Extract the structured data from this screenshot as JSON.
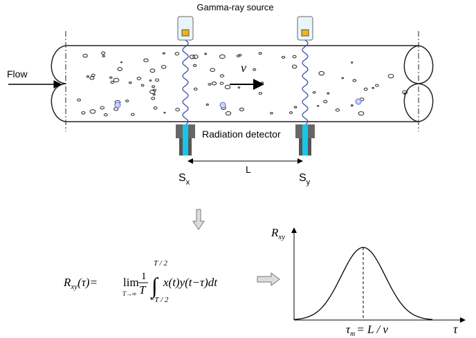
{
  "labels": {
    "source": "Gamma-ray source",
    "flow": "Flow",
    "velocity": "v",
    "detector": "Radiation detector",
    "sensor_x": {
      "main": "S",
      "sub": "x"
    },
    "sensor_y": {
      "main": "S",
      "sub": "y"
    },
    "distance": "L"
  },
  "formula": {
    "lhs_main": "R",
    "lhs_sub": "xy",
    "lhs_arg": "(τ)=",
    "lim": "lim",
    "lim_sub": "T→∞",
    "frac_num": "1",
    "frac_den": "T",
    "integral": "∫",
    "upper": "T / 2",
    "lower": "−T / 2",
    "integrand": "x(t)y(t−τ)dt"
  },
  "plot": {
    "y_label_main": "R",
    "y_label_sub": "xy",
    "x_label": "τ",
    "peak_main": "τ",
    "peak_sub": "m",
    "peak_rhs": "= L / v"
  }
}
